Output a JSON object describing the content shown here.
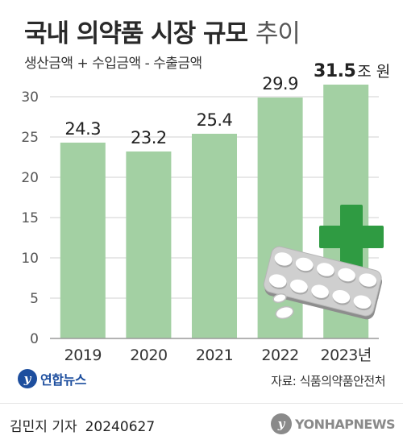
{
  "header": {
    "title_bold": "국내 의약품 시장 규모",
    "title_light": "추이",
    "subtitle": "생산금액 + 수입금액 - 수출금액"
  },
  "chart_data": {
    "type": "bar",
    "categories": [
      "2019",
      "2020",
      "2021",
      "2022",
      "2023년"
    ],
    "values": [
      24.3,
      23.2,
      25.4,
      29.9,
      31.5
    ],
    "value_labels": [
      "24.3",
      "23.2",
      "25.4",
      "29.9",
      "31.5"
    ],
    "unit": "조 원",
    "ylim": [
      0,
      30
    ],
    "yticks": [
      "0",
      "5",
      "10",
      "15",
      "20",
      "25",
      "30"
    ],
    "grid": true,
    "bar_color": "#a3d0a3"
  },
  "decoration": {
    "cross_color": "#2f9b42",
    "pills": "pill-blister-pack"
  },
  "logo": {
    "mark": "y",
    "text": "연합뉴스"
  },
  "source": "자료: 식품의약품안전처",
  "footer": {
    "author": "김민지 기자",
    "date": "20240627",
    "brand_text": "YONHAPNEWS"
  }
}
